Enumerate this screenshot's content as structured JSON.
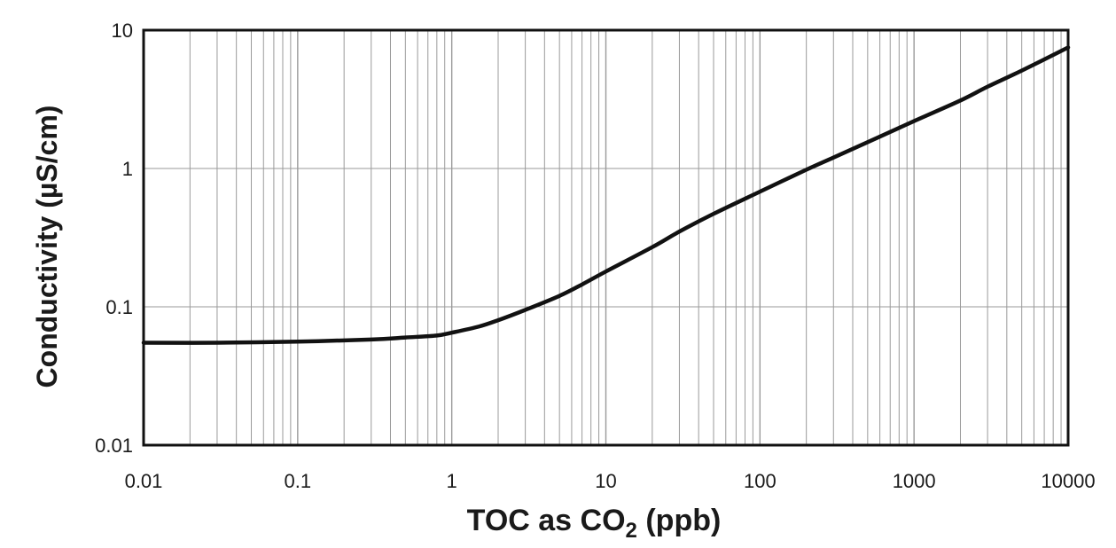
{
  "chart_data": {
    "type": "line",
    "xscale": "log",
    "yscale": "log",
    "xlim": [
      0.01,
      10000
    ],
    "ylim": [
      0.01,
      10
    ],
    "x_ticks": [
      "0.01",
      "0.1",
      "1",
      "10",
      "100",
      "1000",
      "10000"
    ],
    "y_ticks": [
      "0.01",
      "0.1",
      "1",
      "10"
    ],
    "xlabel": {
      "main": "TOC as CO",
      "subscript": "2",
      "suffix": " (ppb)"
    },
    "ylabel": "Conductivity (µS/cm)",
    "grid": {
      "x": "major-and-minor",
      "y": "major"
    },
    "colors": {
      "line": "#111111",
      "grid": "#9a9a9a",
      "frame": "#111111"
    },
    "series": [
      {
        "x": [
          0.01,
          0.03,
          0.1,
          0.3,
          0.5,
          0.8,
          1,
          1.5,
          2,
          3,
          5,
          7,
          10,
          20,
          30,
          50,
          100,
          200,
          300,
          500,
          1000,
          2000,
          3000,
          5000,
          10000
        ],
        "y": [
          0.055,
          0.055,
          0.056,
          0.058,
          0.06,
          0.062,
          0.065,
          0.072,
          0.08,
          0.095,
          0.12,
          0.145,
          0.18,
          0.27,
          0.35,
          0.47,
          0.68,
          0.98,
          1.2,
          1.55,
          2.2,
          3.1,
          3.9,
          5.1,
          7.5
        ]
      }
    ]
  }
}
